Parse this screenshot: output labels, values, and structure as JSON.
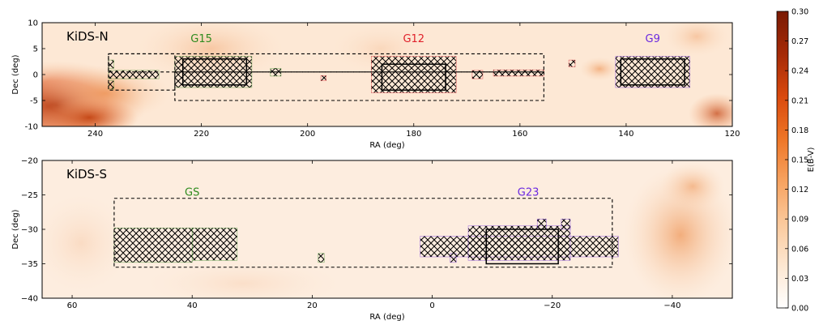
{
  "chart_data": [
    {
      "type": "scatter",
      "panel_label": "KiDS-N",
      "xlabel": "RA (deg)",
      "ylabel": "Dec (deg)",
      "xlim": [
        250,
        120
      ],
      "ylim": [
        -10,
        10
      ],
      "xticks": [
        240,
        220,
        200,
        180,
        160,
        140,
        120
      ],
      "yticks": [
        10,
        5,
        0,
        -5,
        -10
      ],
      "region_labels": [
        {
          "text": "G15",
          "x": 220,
          "y": 7,
          "color": "#2e8b1e"
        },
        {
          "text": "G12",
          "x": 180,
          "y": 7,
          "color": "#e0202a"
        },
        {
          "text": "G9",
          "x": 135,
          "y": 7,
          "color": "#6a28e0"
        }
      ],
      "solid_boxes": [
        {
          "name": "G15",
          "x0": 223.5,
          "x1": 211.5,
          "y0": -2,
          "y1": 3
        },
        {
          "name": "G12",
          "x0": 186,
          "x1": 174,
          "y0": -3,
          "y1": 2
        },
        {
          "name": "G9",
          "x0": 141,
          "x1": 129,
          "y0": -2,
          "y1": 3
        }
      ],
      "dashed_boxes": [
        {
          "x0": 237.5,
          "x1": 225,
          "y0": -3,
          "y1": 4
        },
        {
          "x0": 237.5,
          "x1": 155.5,
          "y0": 0.5,
          "y1": 4
        },
        {
          "x0": 225,
          "x1": 155.5,
          "y0": -5,
          "y1": 0.5
        }
      ],
      "series": [
        {
          "color": "#2e8b1e",
          "blocks": [
            {
              "x0": 237.5,
              "x1": 228,
              "y0": -0.8,
              "y1": 0.8
            },
            {
              "x0": 237.5,
              "x1": 236.5,
              "y0": 1.2,
              "y1": 2.8
            },
            {
              "x0": 237.5,
              "x1": 236.5,
              "y0": -2.8,
              "y1": -1.2
            },
            {
              "x0": 225,
              "x1": 210.5,
              "y0": -2.5,
              "y1": 3.5
            },
            {
              "x0": 207,
              "x1": 205,
              "y0": -0.3,
              "y1": 1.2
            }
          ]
        },
        {
          "color": "#e0202a",
          "blocks": [
            {
              "x0": 197.5,
              "x1": 196.5,
              "y0": -1.2,
              "y1": -0.2
            },
            {
              "x0": 188,
              "x1": 172,
              "y0": -3.5,
              "y1": 3.5
            },
            {
              "x0": 169,
              "x1": 167,
              "y0": -0.8,
              "y1": 0.8
            },
            {
              "x0": 165,
              "x1": 155.5,
              "y0": -0.3,
              "y1": 0.9
            },
            {
              "x0": 150.8,
              "x1": 149.6,
              "y0": 1.5,
              "y1": 2.8
            }
          ]
        },
        {
          "color": "#6a28e0",
          "blocks": [
            {
              "x0": 142,
              "x1": 128,
              "y0": -2.5,
              "y1": 3.5
            }
          ]
        }
      ]
    },
    {
      "type": "scatter",
      "panel_label": "KiDS-S",
      "xlabel": "RA (deg)",
      "ylabel": "Dec (deg)",
      "xlim": [
        65,
        -50
      ],
      "ylim": [
        -40,
        -20
      ],
      "xticks": [
        60,
        40,
        20,
        0,
        -20,
        -40
      ],
      "xtick_labels": [
        "60",
        "40",
        "20",
        "0",
        "−20",
        "−40"
      ],
      "yticks": [
        -20,
        -25,
        -30,
        -35,
        -40
      ],
      "ytick_labels": [
        "−20",
        "−25",
        "−30",
        "−35",
        "−40"
      ],
      "region_labels": [
        {
          "text": "GS",
          "x": 40,
          "y": -24.5,
          "color": "#2e8b1e"
        },
        {
          "text": "G23",
          "x": -16,
          "y": -24.5,
          "color": "#6a28e0"
        }
      ],
      "solid_boxes": [
        {
          "name": "G23",
          "x0": -9,
          "x1": -21,
          "y0": -35,
          "y1": -30
        }
      ],
      "dashed_boxes": [
        {
          "x0": 53,
          "x1": -30,
          "y0": -35.5,
          "y1": -25.5
        }
      ],
      "series": [
        {
          "color": "#2e8b1e",
          "blocks": [
            {
              "x0": 53,
              "x1": 40,
              "y0": -34.8,
              "y1": -29.8
            },
            {
              "x0": 40,
              "x1": 32.5,
              "y0": -34.5,
              "y1": -29.8
            },
            {
              "x0": 19,
              "x1": 18,
              "y0": -34.8,
              "y1": -33.5
            }
          ]
        },
        {
          "color": "#6a28e0",
          "blocks": [
            {
              "x0": -3,
              "x1": -4,
              "y0": -34.8,
              "y1": -33.5
            },
            {
              "x0": 2,
              "x1": -31,
              "y0": -34,
              "y1": -31
            },
            {
              "x0": -6,
              "x1": -23,
              "y0": -34.5,
              "y1": -29.5
            },
            {
              "x0": -17.5,
              "x1": -19,
              "y0": -30,
              "y1": -28.5
            },
            {
              "x0": -21.5,
              "x1": -23,
              "y0": -30,
              "y1": -28.5
            }
          ]
        }
      ]
    }
  ],
  "colorbar": {
    "label": "E(B-V)",
    "range": [
      0.0,
      0.3
    ],
    "ticks": [
      "0.00",
      "0.03",
      "0.06",
      "0.09",
      "0.12",
      "0.15",
      "0.18",
      "0.21",
      "0.24",
      "0.27",
      "0.30"
    ],
    "colormap": [
      "#ffffff",
      "#fde7d1",
      "#fbc99c",
      "#f7a25f",
      "#ee7526",
      "#d9490d",
      "#a52a07",
      "#7a1a04"
    ]
  }
}
